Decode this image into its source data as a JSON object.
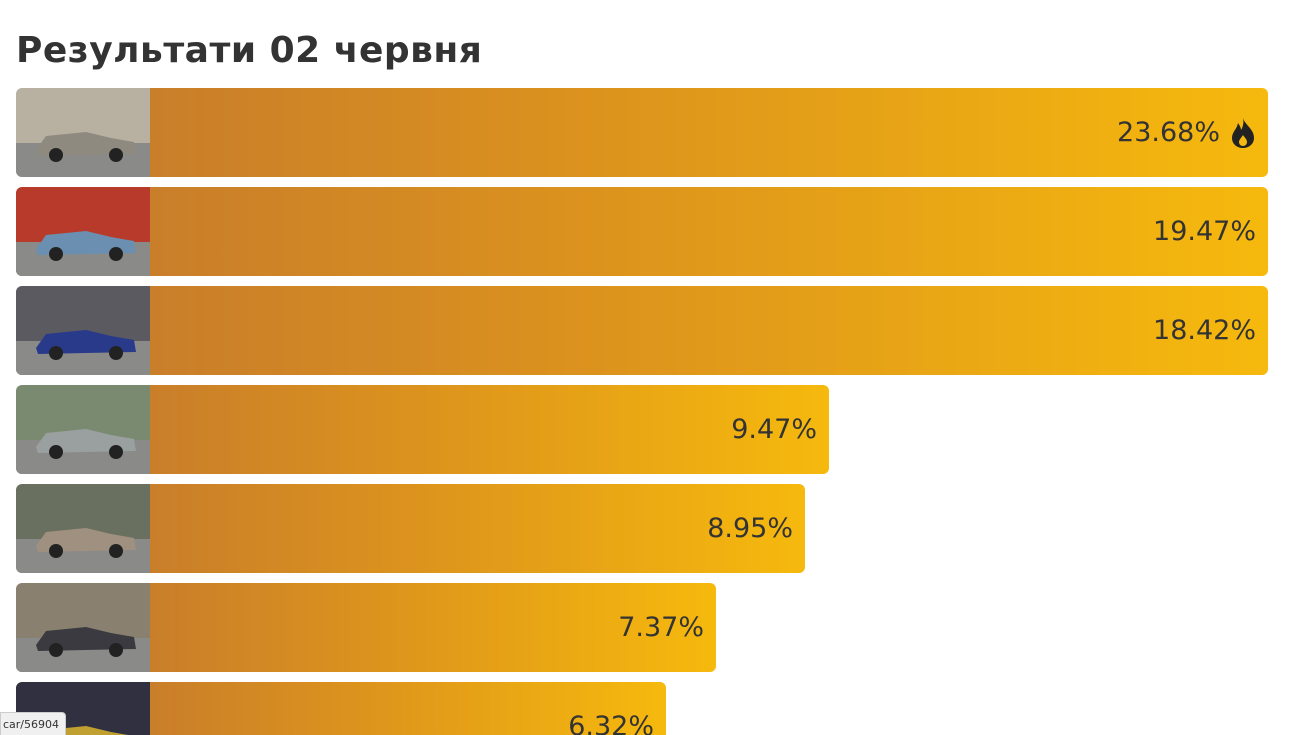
{
  "page": {
    "title": "Результати 02 червня",
    "results": [
      {
        "percent": "23.68%"
      },
      {
        "percent": "19.47%"
      },
      {
        "percent": "18.42%"
      },
      {
        "percent": "9.47%"
      },
      {
        "percent": "8.95%"
      },
      {
        "percent": "7.37%"
      },
      {
        "percent": "6.32%"
      }
    ],
    "status_url": "car/56904"
  }
}
